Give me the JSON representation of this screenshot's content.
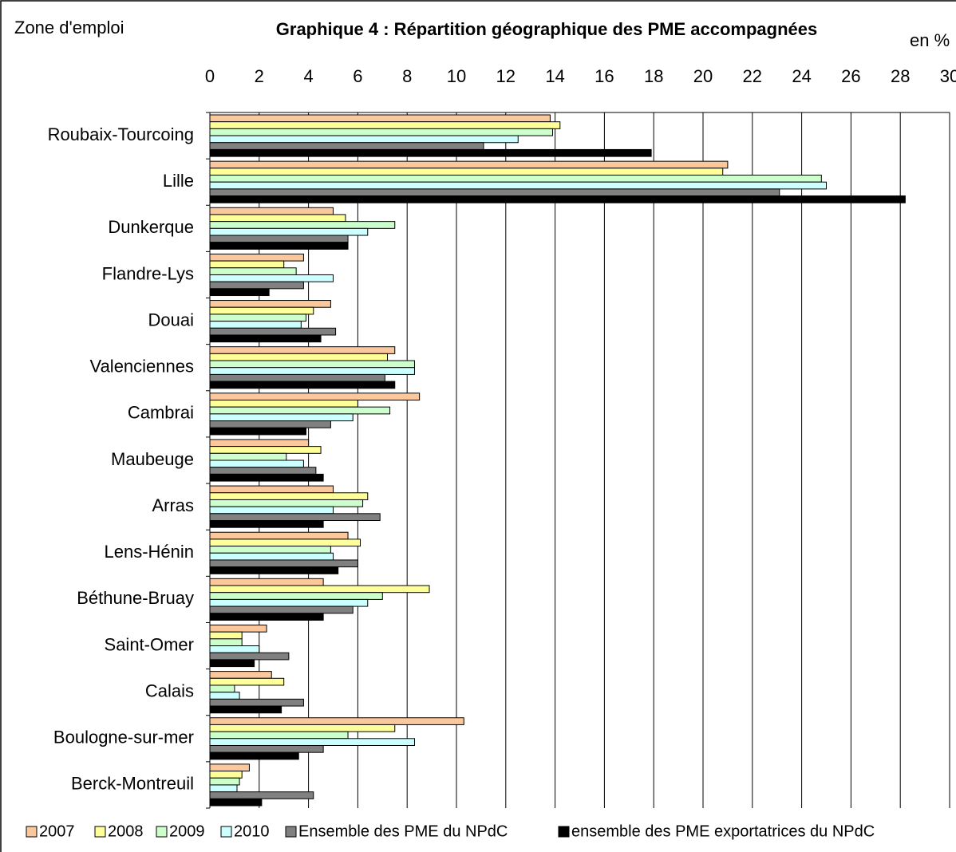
{
  "chart_data": {
    "type": "hbar",
    "title": "Graphique 4 : Répartition géographique des PME accompagnées",
    "y_axis_label": "Zone d'emploi",
    "x_axis_unit": "en %",
    "categories": [
      "Roubaix-Tourcoing",
      "Lille",
      "Dunkerque",
      "Flandre-Lys",
      "Douai",
      "Valenciennes",
      "Cambrai",
      "Maubeuge",
      "Arras",
      "Lens-Hénin",
      "Béthune-Bruay",
      "Saint-Omer",
      "Calais",
      "Boulogne-sur-mer",
      "Berck-Montreuil"
    ],
    "series": [
      {
        "name": "2007",
        "color": "#fbc89d",
        "values": [
          13.8,
          21.0,
          5.0,
          3.8,
          4.9,
          7.5,
          8.5,
          4.0,
          5.0,
          5.6,
          4.6,
          2.3,
          2.5,
          10.3,
          1.6
        ]
      },
      {
        "name": "2008",
        "color": "#ffff99",
        "values": [
          14.2,
          20.8,
          5.5,
          3.0,
          4.2,
          7.2,
          6.0,
          4.5,
          6.4,
          6.1,
          8.9,
          1.3,
          3.0,
          7.5,
          1.3
        ]
      },
      {
        "name": "2009",
        "color": "#ccffcc",
        "values": [
          13.9,
          24.8,
          7.5,
          3.5,
          3.9,
          8.3,
          7.3,
          3.1,
          6.2,
          4.9,
          7.0,
          1.3,
          1.0,
          5.6,
          1.2
        ]
      },
      {
        "name": "2010",
        "color": "#ccffff",
        "values": [
          12.5,
          25.0,
          6.4,
          5.0,
          3.7,
          8.3,
          5.8,
          3.8,
          5.0,
          5.0,
          6.4,
          2.0,
          1.2,
          8.3,
          1.1
        ]
      },
      {
        "name": "Ensemble des PME du NPdC",
        "color": "#808080",
        "values": [
          11.1,
          23.1,
          5.6,
          3.8,
          5.1,
          7.1,
          4.9,
          4.3,
          6.9,
          6.0,
          5.8,
          3.2,
          3.8,
          4.6,
          4.2
        ]
      },
      {
        "name": "ensemble des PME exportatrices du NPdC",
        "color": "#000000",
        "values": [
          17.9,
          28.2,
          5.6,
          2.4,
          4.5,
          7.5,
          3.9,
          4.6,
          4.6,
          5.2,
          4.6,
          1.8,
          2.9,
          3.6,
          2.1
        ]
      }
    ],
    "xlim": [
      0,
      30
    ],
    "xticks": [
      0,
      2,
      4,
      6,
      8,
      10,
      12,
      14,
      16,
      18,
      20,
      22,
      24,
      26,
      28,
      30
    ],
    "grid": true,
    "legend": "bottom"
  }
}
